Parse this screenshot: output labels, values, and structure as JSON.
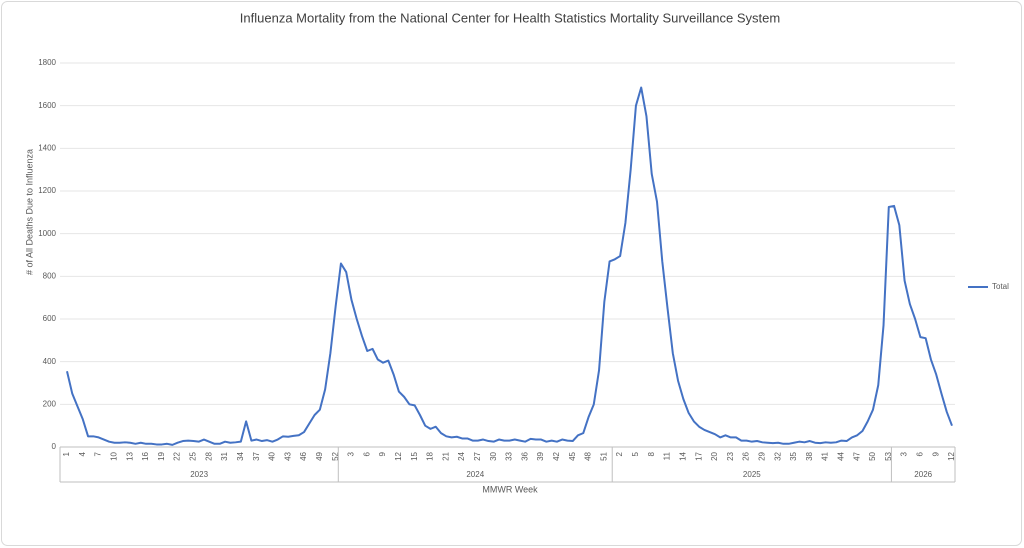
{
  "chart_data": {
    "type": "line",
    "title": "Influenza Mortality from the National Center for Health Statistics Mortality Surveillance System",
    "y_label": "# of All Deaths Due to Influenza",
    "x_label": "MMWR Week",
    "x_groups": [
      {
        "label": "2023",
        "count": 52
      },
      {
        "label": "2024",
        "count": 52
      },
      {
        "label": "2025",
        "count": 53
      },
      {
        "label": "2026",
        "count": 12
      }
    ],
    "categories": [
      1,
      null,
      null,
      4,
      null,
      null,
      7,
      null,
      null,
      10,
      null,
      null,
      13,
      null,
      null,
      16,
      null,
      null,
      19,
      null,
      null,
      22,
      null,
      null,
      25,
      null,
      null,
      28,
      null,
      null,
      31,
      null,
      null,
      34,
      null,
      null,
      37,
      null,
      null,
      40,
      null,
      null,
      43,
      null,
      null,
      46,
      null,
      null,
      49,
      null,
      null,
      52,
      null,
      null,
      3,
      null,
      null,
      6,
      null,
      null,
      9,
      null,
      null,
      12,
      null,
      null,
      15,
      null,
      null,
      18,
      null,
      null,
      21,
      null,
      null,
      24,
      null,
      null,
      27,
      null,
      null,
      30,
      null,
      null,
      33,
      null,
      null,
      36,
      null,
      null,
      39,
      null,
      null,
      42,
      null,
      null,
      45,
      null,
      null,
      48,
      null,
      null,
      51,
      null,
      null,
      2,
      null,
      null,
      5,
      null,
      null,
      8,
      null,
      null,
      11,
      null,
      null,
      14,
      null,
      null,
      17,
      null,
      null,
      20,
      null,
      null,
      23,
      null,
      null,
      26,
      null,
      null,
      29,
      null,
      null,
      32,
      null,
      null,
      35,
      null,
      null,
      38,
      null,
      null,
      41,
      null,
      null,
      44,
      null,
      null,
      47,
      null,
      null,
      50,
      null,
      null,
      53,
      null,
      null,
      3,
      null,
      null,
      6,
      null,
      null,
      9,
      null,
      null,
      12
    ],
    "series": [
      {
        "name": "Total",
        "color": "#4472c4",
        "values": [
          355,
          250,
          190,
          130,
          50,
          50,
          45,
          35,
          25,
          20,
          20,
          22,
          20,
          15,
          20,
          15,
          15,
          12,
          12,
          15,
          10,
          20,
          28,
          30,
          28,
          25,
          35,
          25,
          15,
          15,
          25,
          20,
          22,
          25,
          120,
          30,
          35,
          28,
          32,
          25,
          35,
          50,
          48,
          52,
          55,
          70,
          110,
          150,
          175,
          270,
          440,
          660,
          860,
          820,
          690,
          600,
          520,
          450,
          460,
          410,
          395,
          405,
          340,
          260,
          235,
          200,
          195,
          150,
          100,
          85,
          95,
          65,
          50,
          45,
          48,
          40,
          40,
          30,
          30,
          35,
          28,
          25,
          35,
          30,
          30,
          35,
          30,
          25,
          38,
          35,
          35,
          25,
          30,
          25,
          35,
          30,
          28,
          55,
          65,
          140,
          200,
          360,
          680,
          870,
          880,
          895,
          1050,
          1300,
          1600,
          1685,
          1550,
          1280,
          1150,
          870,
          650,
          440,
          310,
          225,
          160,
          120,
          95,
          80,
          70,
          60,
          45,
          55,
          45,
          45,
          30,
          30,
          25,
          28,
          22,
          20,
          18,
          20,
          15,
          15,
          20,
          25,
          22,
          28,
          20,
          18,
          22,
          20,
          22,
          30,
          28,
          45,
          55,
          75,
          120,
          175,
          290,
          570,
          1125,
          1130,
          1040,
          780,
          670,
          600,
          515,
          510,
          410,
          340,
          250,
          165,
          100
        ]
      }
    ],
    "ylim": [
      0,
      1800
    ],
    "yticks": [
      0,
      200,
      400,
      600,
      800,
      1000,
      1200,
      1400,
      1600,
      1800
    ],
    "grid": true,
    "legend": "right"
  }
}
